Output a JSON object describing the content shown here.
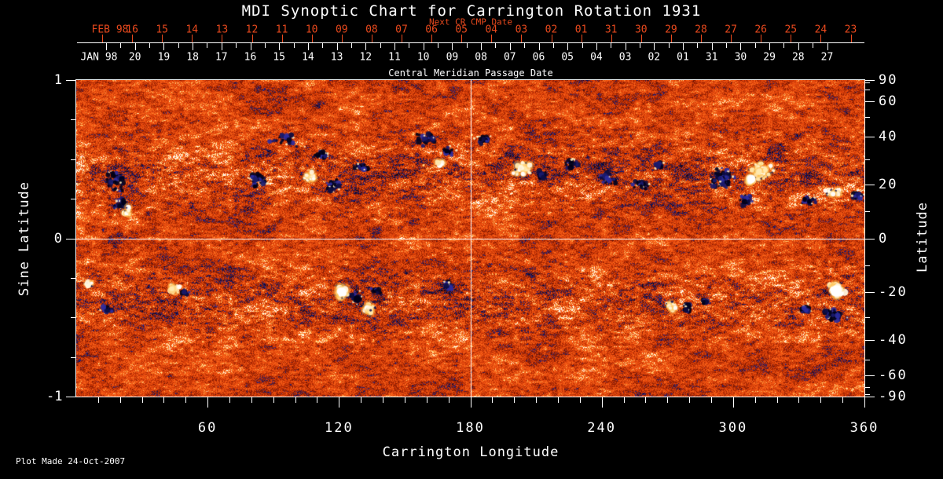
{
  "title": "MDI Synoptic Chart for Carrington Rotation 1931",
  "footer": {
    "plot_made": "Plot Made 24-Oct-2007"
  },
  "colors": {
    "accent_red": "#e8491d",
    "foreground": "#ffffff",
    "background": "#000000"
  },
  "top_axis": {
    "next_cr_label": "Next CR CMP Date",
    "next_cr_month": "FEB 98",
    "next_cr_days": [
      "16",
      "15",
      "14",
      "13",
      "12",
      "11",
      "10",
      "09",
      "08",
      "07",
      "06",
      "05",
      "04",
      "03",
      "02",
      "01",
      "31",
      "30",
      "29",
      "28",
      "27",
      "26",
      "25",
      "24",
      "23"
    ],
    "cmp_label": "Central Meridian Passage Date",
    "cmp_month": "JAN 98",
    "cmp_days": [
      "20",
      "19",
      "18",
      "17",
      "16",
      "15",
      "14",
      "13",
      "12",
      "11",
      "10",
      "09",
      "08",
      "07",
      "06",
      "05",
      "04",
      "03",
      "02",
      "01",
      "31",
      "30",
      "29",
      "28",
      "27"
    ]
  },
  "left_axis": {
    "label": "Sine Latitude",
    "ticks": [
      {
        "v": 1,
        "t": "1"
      },
      {
        "v": 0,
        "t": "0"
      },
      {
        "v": -1,
        "t": "-1"
      }
    ],
    "minor_values": [
      0.75,
      0.5,
      0.25,
      -0.25,
      -0.5,
      -0.75
    ]
  },
  "right_axis": {
    "label": "Latitude",
    "major": [
      90,
      60,
      40,
      20,
      0,
      -20,
      -40,
      -60,
      -90
    ],
    "minor": [
      80,
      70,
      50,
      30,
      10,
      -10,
      -30,
      -50,
      -70,
      -80
    ]
  },
  "bottom_axis": {
    "label": "Carrington Longitude",
    "major": [
      60,
      120,
      180,
      240,
      300,
      360
    ],
    "minor_step_deg": 10
  },
  "chart_data": {
    "type": "heatmap",
    "title": "MDI Synoptic Chart for Carrington Rotation 1931",
    "description": "Solar magnetogram synoptic map: noisy orange-red quiet sun with dark-blue/black negative-polarity and white/yellow positive-polarity active regions",
    "xlabel": "Carrington Longitude",
    "x_range": [
      0,
      360
    ],
    "ylabel_left": "Sine Latitude",
    "y_range_sine": [
      -1,
      1
    ],
    "ylabel_right": "Latitude",
    "y_range_lat": [
      -90,
      90
    ],
    "grid_crosshair": {
      "lon": 180,
      "sine_lat": 0
    },
    "palette_stops": [
      [
        -3.0,
        "#020212"
      ],
      [
        -1.9,
        "#0a0a38"
      ],
      [
        -1.45,
        "#26268c"
      ],
      [
        -1.16,
        "#5e1202"
      ],
      [
        -1.15,
        "#7e1600"
      ],
      [
        0,
        "#e04109"
      ],
      [
        1.15,
        "#ff6d1f"
      ],
      [
        1.16,
        "#ff9433"
      ],
      [
        1.45,
        "#ffd27a"
      ],
      [
        1.9,
        "#ffffff"
      ],
      [
        3.0,
        "#ffffff"
      ]
    ],
    "neg_colors": [
      "#000018",
      "#0d0d42",
      "#1b1b6e",
      "#2d2da0",
      "#05051f"
    ],
    "pos_colors": [
      "#ffffff",
      "#fff6dd",
      "#ffeab0"
    ],
    "pos_halo": "#ffc04d",
    "activity_belt": {
      "center_abs_sine_lat": 0.4,
      "width": 0.2,
      "boost": 0.35
    },
    "active_regions": [
      {
        "lon": 18,
        "slat": 0.36,
        "size": 13,
        "sx": 14,
        "sy": 12,
        "pol": "n"
      },
      {
        "lon": 20,
        "slat": 0.22,
        "size": 7,
        "sx": 9,
        "sy": 8,
        "pol": "n"
      },
      {
        "lon": 23,
        "slat": 0.17,
        "size": 4,
        "sx": 6,
        "sy": 5,
        "pol": "p"
      },
      {
        "lon": 83,
        "slat": 0.37,
        "size": 10,
        "sx": 12,
        "sy": 10,
        "pol": "n"
      },
      {
        "lon": 95,
        "slat": 0.62,
        "size": 8,
        "sx": 22,
        "sy": 8,
        "pol": "n"
      },
      {
        "lon": 107,
        "slat": 0.39,
        "size": 11,
        "sx": 10,
        "sy": 8,
        "pol": "p"
      },
      {
        "lon": 112,
        "slat": 0.52,
        "size": 6,
        "sx": 10,
        "sy": 6,
        "pol": "n"
      },
      {
        "lon": 117,
        "slat": 0.34,
        "size": 9,
        "sx": 10,
        "sy": 8,
        "pol": "n"
      },
      {
        "lon": 130,
        "slat": 0.45,
        "size": 5,
        "sx": 8,
        "sy": 6,
        "pol": "n"
      },
      {
        "lon": 160,
        "slat": 0.63,
        "size": 9,
        "sx": 16,
        "sy": 8,
        "pol": "n"
      },
      {
        "lon": 170,
        "slat": 0.55,
        "size": 7,
        "sx": 10,
        "sy": 7,
        "pol": "n"
      },
      {
        "lon": 166,
        "slat": 0.47,
        "size": 4,
        "sx": 6,
        "sy": 5,
        "pol": "p"
      },
      {
        "lon": 186,
        "slat": 0.62,
        "size": 5,
        "sx": 10,
        "sy": 6,
        "pol": "n"
      },
      {
        "lon": 204,
        "slat": 0.44,
        "size": 10,
        "sx": 12,
        "sy": 9,
        "pol": "p"
      },
      {
        "lon": 213,
        "slat": 0.4,
        "size": 7,
        "sx": 8,
        "sy": 7,
        "pol": "n"
      },
      {
        "lon": 227,
        "slat": 0.47,
        "size": 6,
        "sx": 10,
        "sy": 6,
        "pol": "n"
      },
      {
        "lon": 243,
        "slat": 0.38,
        "size": 8,
        "sx": 12,
        "sy": 8,
        "pol": "n"
      },
      {
        "lon": 258,
        "slat": 0.34,
        "size": 7,
        "sx": 9,
        "sy": 7,
        "pol": "n"
      },
      {
        "lon": 266,
        "slat": 0.47,
        "size": 5,
        "sx": 7,
        "sy": 5,
        "pol": "n"
      },
      {
        "lon": 295,
        "slat": 0.38,
        "size": 20,
        "sx": 16,
        "sy": 14,
        "pol": "n"
      },
      {
        "lon": 306,
        "slat": 0.24,
        "size": 10,
        "sx": 9,
        "sy": 7,
        "pol": "n"
      },
      {
        "lon": 313,
        "slat": 0.43,
        "size": 16,
        "sx": 14,
        "sy": 11,
        "pol": "p"
      },
      {
        "lon": 308,
        "slat": 0.37,
        "size": 5,
        "sx": 4,
        "sy": 4,
        "pol": "P"
      },
      {
        "lon": 335,
        "slat": 0.24,
        "size": 7,
        "sx": 13,
        "sy": 8,
        "pol": "n"
      },
      {
        "lon": 345,
        "slat": 0.29,
        "size": 5,
        "sx": 8,
        "sy": 5,
        "pol": "p"
      },
      {
        "lon": 357,
        "slat": 0.27,
        "size": 5,
        "sx": 6,
        "sy": 6,
        "pol": "n"
      },
      {
        "lon": 6,
        "slat": -0.29,
        "size": 4,
        "sx": 5,
        "sy": 4,
        "pol": "p"
      },
      {
        "lon": 14,
        "slat": -0.45,
        "size": 5,
        "sx": 8,
        "sy": 5,
        "pol": "n"
      },
      {
        "lon": 45,
        "slat": -0.32,
        "size": 8,
        "sx": 8,
        "sy": 7,
        "pol": "p"
      },
      {
        "lon": 50,
        "slat": -0.34,
        "size": 4,
        "sx": 5,
        "sy": 4,
        "pol": "n"
      },
      {
        "lon": 122,
        "slat": -0.34,
        "size": 10,
        "sx": 8,
        "sy": 7,
        "pol": "P"
      },
      {
        "lon": 128,
        "slat": -0.37,
        "size": 9,
        "sx": 8,
        "sy": 7,
        "pol": "n"
      },
      {
        "lon": 133,
        "slat": -0.45,
        "size": 7,
        "sx": 7,
        "sy": 6,
        "pol": "p"
      },
      {
        "lon": 137,
        "slat": -0.33,
        "size": 6,
        "sx": 7,
        "sy": 5,
        "pol": "n"
      },
      {
        "lon": 170,
        "slat": -0.3,
        "size": 4,
        "sx": 6,
        "sy": 5,
        "pol": "n"
      },
      {
        "lon": 272,
        "slat": -0.43,
        "size": 6,
        "sx": 6,
        "sy": 5,
        "pol": "p"
      },
      {
        "lon": 279,
        "slat": -0.44,
        "size": 7,
        "sx": 7,
        "sy": 6,
        "pol": "n"
      },
      {
        "lon": 287,
        "slat": -0.4,
        "size": 4,
        "sx": 5,
        "sy": 4,
        "pol": "n"
      },
      {
        "lon": 347,
        "slat": -0.33,
        "size": 14,
        "sx": 10,
        "sy": 8,
        "pol": "P"
      },
      {
        "lon": 346,
        "slat": -0.48,
        "size": 14,
        "sx": 14,
        "sy": 7,
        "pol": "n"
      },
      {
        "lon": 333,
        "slat": -0.45,
        "size": 6,
        "sx": 8,
        "sy": 5,
        "pol": "n"
      }
    ]
  }
}
